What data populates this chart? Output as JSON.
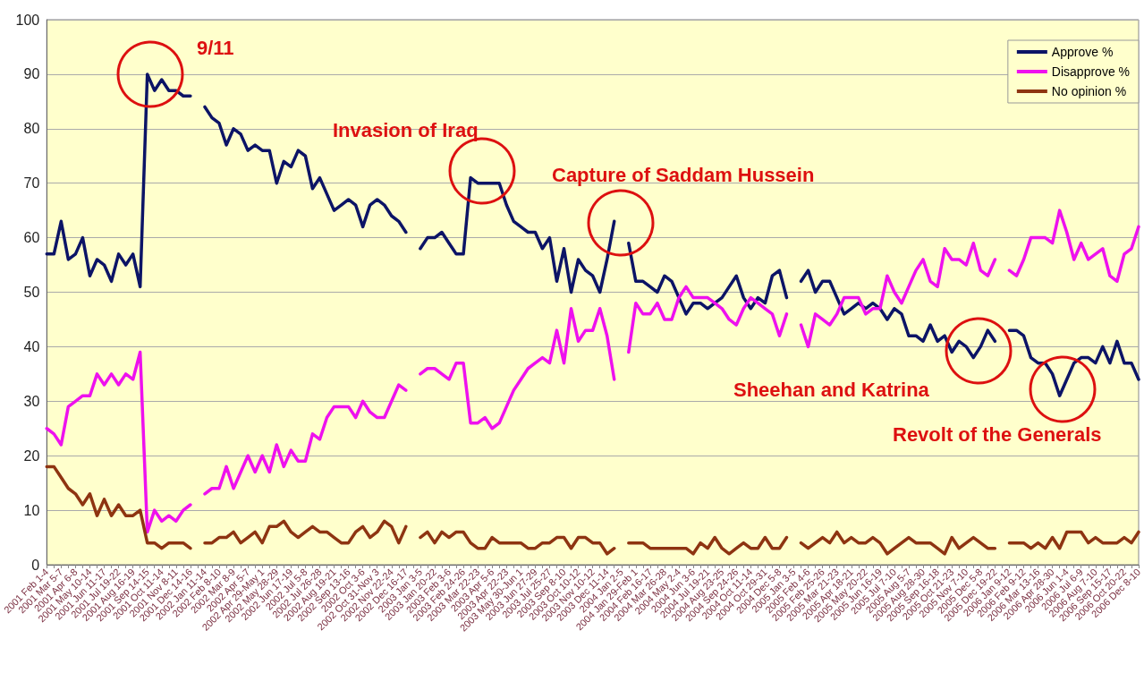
{
  "chart_data": {
    "type": "line",
    "categories": [
      "2001 Feb 1-4",
      null,
      "2001 Mar 5-7",
      null,
      "2001 Apr 6-8",
      null,
      "2001 May 10-14",
      null,
      "2001 Jun 11-17",
      null,
      "2001 Jul 19-22",
      null,
      "2001 Aug 16-19",
      null,
      "2001 Sep 14-15",
      null,
      "2001 Oct 11-14",
      null,
      "2001 Nov 8-11",
      null,
      "2001 Dec 14-16",
      null,
      "2002 Jan 11-14",
      null,
      "2002 Feb 8-10",
      null,
      "2002 Mar 8-9",
      null,
      "2002 Apr 5-7",
      null,
      "2002 Apr 29-May 1",
      null,
      "2002 May 28-29",
      null,
      "2002 Jun 17-19",
      null,
      "2002 Jul 5-8",
      null,
      "2002 Jul 26-28",
      null,
      "2002 Aug 19-21",
      null,
      "2002 Sep 13-16",
      null,
      "2002 Oct 3-6",
      null,
      "2002 Oct 31-Nov 3",
      null,
      "2002 Nov 22-24",
      null,
      "2002 Dec 16-17",
      null,
      "2003 Jan 3-5",
      null,
      "2003 Jan 20-22",
      null,
      "2003 Feb 3-6",
      null,
      "2003 Feb 24-26",
      null,
      "2003 Mar 22-23",
      null,
      "2003 Apr 5-6",
      null,
      "2003 Apr 22-23",
      null,
      "2003 May 30-Jun 1",
      null,
      "2003 Jun 27-29",
      null,
      "2003 Jul 25-27",
      null,
      "2003 Sep 8-10",
      null,
      "2003 Oct 10-12",
      null,
      "2003 Nov 10-12",
      null,
      "2003 Dec 11-14",
      null,
      "2004 Jan 2-5",
      null,
      "2004 Jan 29-Feb 1",
      null,
      "2004 Feb 16-17",
      null,
      "2004 Mar 26-28",
      null,
      "2004 May 2-4",
      null,
      "2004 Jun 3-6",
      null,
      "2004 Jul 19-21",
      null,
      "2004 Aug 23-25",
      null,
      "2004 Sep 24-26",
      null,
      "2004 Oct 11-14",
      null,
      "2004 Oct 29-31",
      null,
      "2004 Dec 5-8",
      null,
      "2005 Jan 3-5",
      null,
      "2005 Feb 4-6",
      null,
      "2005 Feb 25-26",
      null,
      "2005 Mar 21-23",
      null,
      "2005 Apr 18-21",
      null,
      "2005 May 20-22",
      null,
      "2005 Jun 16-19",
      null,
      "2005 Jul 7-10",
      null,
      "2005 Aug 5-7",
      null,
      "2005 Aug 28-30",
      null,
      "2005 Sep 16-18",
      null,
      "2005 Oct 21-23",
      null,
      "2005 Nov 7-10",
      null,
      "2005 Dec 5-8",
      null,
      "2005 Dec 19-22",
      null,
      "2006 Jan 9-12",
      null,
      "2006 Feb 9-12",
      null,
      "2006 Mar 13-16",
      null,
      "2006 Apr 28-30",
      null,
      "2006 Jun 1-4",
      null,
      "2006 Jul 6-9",
      null,
      "2006 Aug 7-10",
      null,
      "2006 Sep 15-17",
      null,
      "2006 Oct 20-22",
      null,
      "2006 Dec 8-10"
    ],
    "series": [
      {
        "name": "Approve %",
        "color": "#0c1466",
        "values": [
          57,
          57,
          63,
          56,
          57,
          60,
          53,
          56,
          55,
          52,
          57,
          55,
          57,
          51,
          90,
          87,
          89,
          87,
          87,
          86,
          86,
          null,
          84,
          82,
          81,
          77,
          80,
          79,
          76,
          77,
          76,
          76,
          70,
          74,
          73,
          76,
          75,
          69,
          71,
          68,
          65,
          66,
          67,
          66,
          62,
          66,
          67,
          66,
          64,
          63,
          61,
          null,
          58,
          60,
          60,
          61,
          59,
          57,
          57,
          71,
          70,
          70,
          70,
          70,
          66,
          63,
          62,
          61,
          61,
          58,
          60,
          52,
          58,
          50,
          56,
          54,
          53,
          50,
          56,
          63,
          null,
          59,
          52,
          52,
          51,
          50,
          53,
          52,
          49,
          46,
          48,
          48,
          47,
          48,
          49,
          51,
          53,
          49,
          47,
          49,
          48,
          53,
          54,
          49,
          null,
          52,
          54,
          50,
          52,
          52,
          49,
          46,
          47,
          48,
          47,
          48,
          47,
          45,
          47,
          46,
          42,
          42,
          41,
          44,
          41,
          42,
          39,
          41,
          40,
          38,
          40,
          43,
          41,
          null,
          43,
          43,
          42,
          38,
          37,
          37,
          35,
          31,
          34,
          37,
          38,
          38,
          37,
          40,
          37,
          41,
          37,
          37,
          34
        ]
      },
      {
        "name": "Disapprove %",
        "color": "#ee11ee",
        "values": [
          25,
          24,
          22,
          29,
          30,
          31,
          31,
          35,
          33,
          35,
          33,
          35,
          34,
          39,
          6,
          10,
          8,
          9,
          8,
          10,
          11,
          null,
          13,
          14,
          14,
          18,
          14,
          17,
          20,
          17,
          20,
          17,
          22,
          18,
          21,
          19,
          19,
          24,
          23,
          27,
          29,
          29,
          29,
          27,
          30,
          28,
          27,
          27,
          30,
          33,
          32,
          null,
          35,
          36,
          36,
          35,
          34,
          37,
          37,
          26,
          26,
          27,
          25,
          26,
          29,
          32,
          34,
          36,
          37,
          38,
          37,
          43,
          37,
          47,
          41,
          43,
          43,
          47,
          42,
          34,
          null,
          39,
          48,
          46,
          46,
          48,
          45,
          45,
          49,
          51,
          49,
          49,
          49,
          48,
          47,
          45,
          44,
          47,
          49,
          48,
          47,
          46,
          42,
          46,
          null,
          44,
          40,
          46,
          45,
          44,
          46,
          49,
          49,
          49,
          46,
          47,
          47,
          53,
          50,
          48,
          51,
          54,
          56,
          52,
          51,
          58,
          56,
          56,
          55,
          59,
          54,
          53,
          56,
          null,
          54,
          53,
          56,
          60,
          60,
          60,
          59,
          65,
          61,
          56,
          59,
          56,
          57,
          58,
          53,
          52,
          57,
          58,
          62
        ]
      },
      {
        "name": "No opinion %",
        "color": "#8e3411",
        "values": [
          18,
          18,
          16,
          14,
          13,
          11,
          13,
          9,
          12,
          9,
          11,
          9,
          9,
          10,
          4,
          4,
          3,
          4,
          4,
          4,
          3,
          null,
          4,
          4,
          5,
          5,
          6,
          4,
          5,
          6,
          4,
          7,
          7,
          8,
          6,
          5,
          6,
          7,
          6,
          6,
          5,
          4,
          4,
          6,
          7,
          5,
          6,
          8,
          7,
          4,
          7,
          null,
          5,
          6,
          4,
          6,
          5,
          6,
          6,
          4,
          3,
          3,
          5,
          4,
          4,
          4,
          4,
          3,
          3,
          4,
          4,
          5,
          5,
          3,
          5,
          5,
          4,
          4,
          2,
          3,
          null,
          4,
          4,
          4,
          3,
          3,
          3,
          3,
          3,
          3,
          2,
          4,
          3,
          5,
          3,
          2,
          3,
          4,
          3,
          3,
          5,
          3,
          3,
          5,
          null,
          4,
          3,
          4,
          5,
          4,
          6,
          4,
          5,
          4,
          4,
          5,
          4,
          2,
          3,
          4,
          5,
          4,
          4,
          4,
          3,
          2,
          5,
          3,
          4,
          5,
          4,
          3,
          3,
          null,
          4,
          4,
          4,
          3,
          4,
          3,
          5,
          3,
          6,
          6,
          6,
          4,
          5,
          4,
          4,
          4,
          5,
          4,
          6
        ]
      }
    ],
    "ylim": [
      0,
      100
    ],
    "yticks": [
      0,
      10,
      20,
      30,
      40,
      50,
      60,
      70,
      80,
      90,
      100
    ],
    "grid": "y",
    "legend": "top right",
    "marker": "none",
    "line_style": "solid",
    "annotations": [
      "9/11",
      "Invasion of Iraq",
      "Capture of Saddam Hussein",
      "Sheehan and Katrina",
      "Revolt of the Generals"
    ]
  }
}
